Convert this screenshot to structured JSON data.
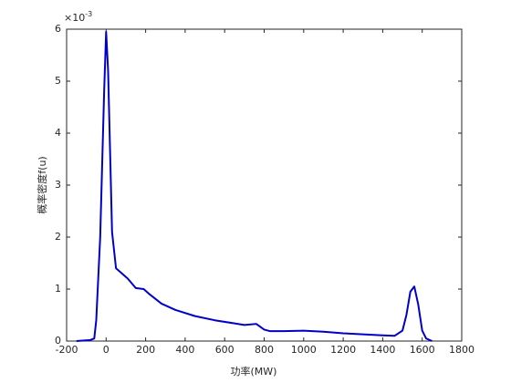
{
  "chart_data": {
    "type": "line",
    "xlabel": "功率(MW)",
    "ylabel": "概率密度f(u)",
    "y_multiplier": {
      "base": "×10",
      "exponent": "-3"
    },
    "x": [
      -150,
      -80,
      -60,
      -50,
      -30,
      -10,
      0,
      10,
      30,
      50,
      80,
      110,
      150,
      190,
      220,
      280,
      350,
      450,
      550,
      650,
      700,
      760,
      800,
      830,
      900,
      1000,
      1100,
      1200,
      1300,
      1400,
      1460,
      1500,
      1520,
      1540,
      1560,
      1580,
      1600,
      1620,
      1650
    ],
    "values": [
      0,
      0.02,
      0.05,
      0.4,
      2,
      4.8,
      5.95,
      5.2,
      2.1,
      1.4,
      1.3,
      1.2,
      1.02,
      1.0,
      0.9,
      0.72,
      0.6,
      0.48,
      0.4,
      0.34,
      0.31,
      0.33,
      0.22,
      0.19,
      0.19,
      0.2,
      0.18,
      0.15,
      0.13,
      0.11,
      0.1,
      0.2,
      0.5,
      0.95,
      1.05,
      0.7,
      0.2,
      0.05,
      0
    ],
    "color": "#0000c8",
    "xlim": [
      -200,
      1800
    ],
    "xticks": [
      -200,
      0,
      200,
      400,
      600,
      800,
      1000,
      1200,
      1400,
      1600,
      1800
    ],
    "ylim": [
      0,
      6
    ],
    "yticks": [
      0,
      1,
      2,
      3,
      4,
      5,
      6
    ],
    "grid": false
  }
}
